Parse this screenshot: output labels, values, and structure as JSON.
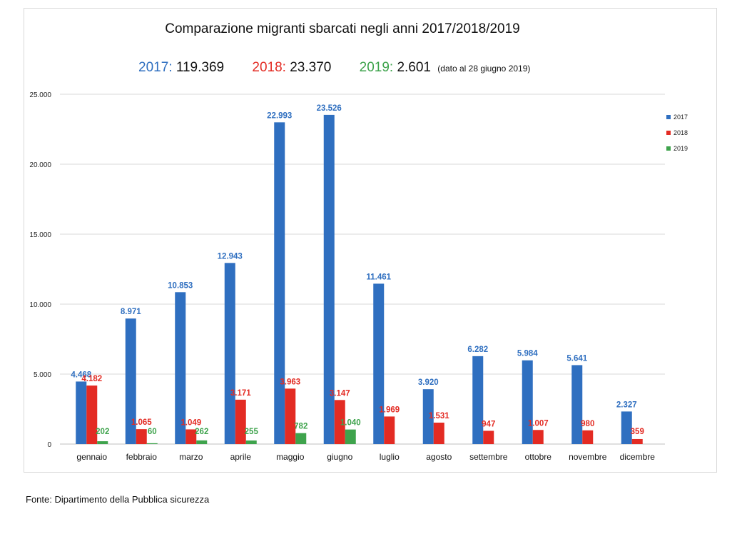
{
  "colors": {
    "2017": "#2f6fc0",
    "2018": "#e32b23",
    "2019": "#3ea34c"
  },
  "header": {
    "title": "Comparazione migranti sbarcati negli anni 2017/2018/2019",
    "totals": [
      {
        "year": "2017:",
        "value": "119.369"
      },
      {
        "year": "2018:",
        "value": "23.370"
      },
      {
        "year": "2019:",
        "value": "2.601",
        "note": "(dato al 28 giugno 2019)"
      }
    ]
  },
  "source": "Fonte: Dipartimento della Pubblica sicurezza",
  "chart_data": {
    "type": "bar",
    "title": "Comparazione migranti sbarcati negli anni 2017/2018/2019",
    "categories": [
      "gennaio",
      "febbraio",
      "marzo",
      "aprile",
      "maggio",
      "giugno",
      "luglio",
      "agosto",
      "settembre",
      "ottobre",
      "novembre",
      "dicembre"
    ],
    "series": [
      {
        "name": "2017",
        "values": [
          4468,
          8971,
          10853,
          12943,
          22993,
          23526,
          11461,
          3920,
          6282,
          5984,
          5641,
          2327
        ],
        "labels": [
          "4.468",
          "8.971",
          "10.853",
          "12.943",
          "22.993",
          "23.526",
          "11.461",
          "3.920",
          "6.282",
          "5.984",
          "5.641",
          "2.327"
        ]
      },
      {
        "name": "2018",
        "values": [
          4182,
          1065,
          1049,
          3171,
          3963,
          3147,
          1969,
          1531,
          947,
          1007,
          980,
          359
        ],
        "labels": [
          "4.182",
          "1.065",
          "1.049",
          "3.171",
          "3.963",
          "3.147",
          "1.969",
          "1.531",
          "947",
          "1.007",
          "980",
          "359"
        ]
      },
      {
        "name": "2019",
        "values": [
          202,
          60,
          262,
          255,
          782,
          1040,
          null,
          null,
          null,
          null,
          null,
          null
        ],
        "labels": [
          "202",
          "60",
          "262",
          "255",
          "782",
          "1.040",
          null,
          null,
          null,
          null,
          null,
          null
        ]
      }
    ],
    "ylim": [
      0,
      25000
    ],
    "yticks": [
      0,
      5000,
      10000,
      15000,
      20000,
      25000
    ],
    "ytick_labels": [
      "0",
      "5.000",
      "10.000",
      "15.000",
      "20.000",
      "25.000"
    ],
    "legend": "right",
    "grid": true
  }
}
